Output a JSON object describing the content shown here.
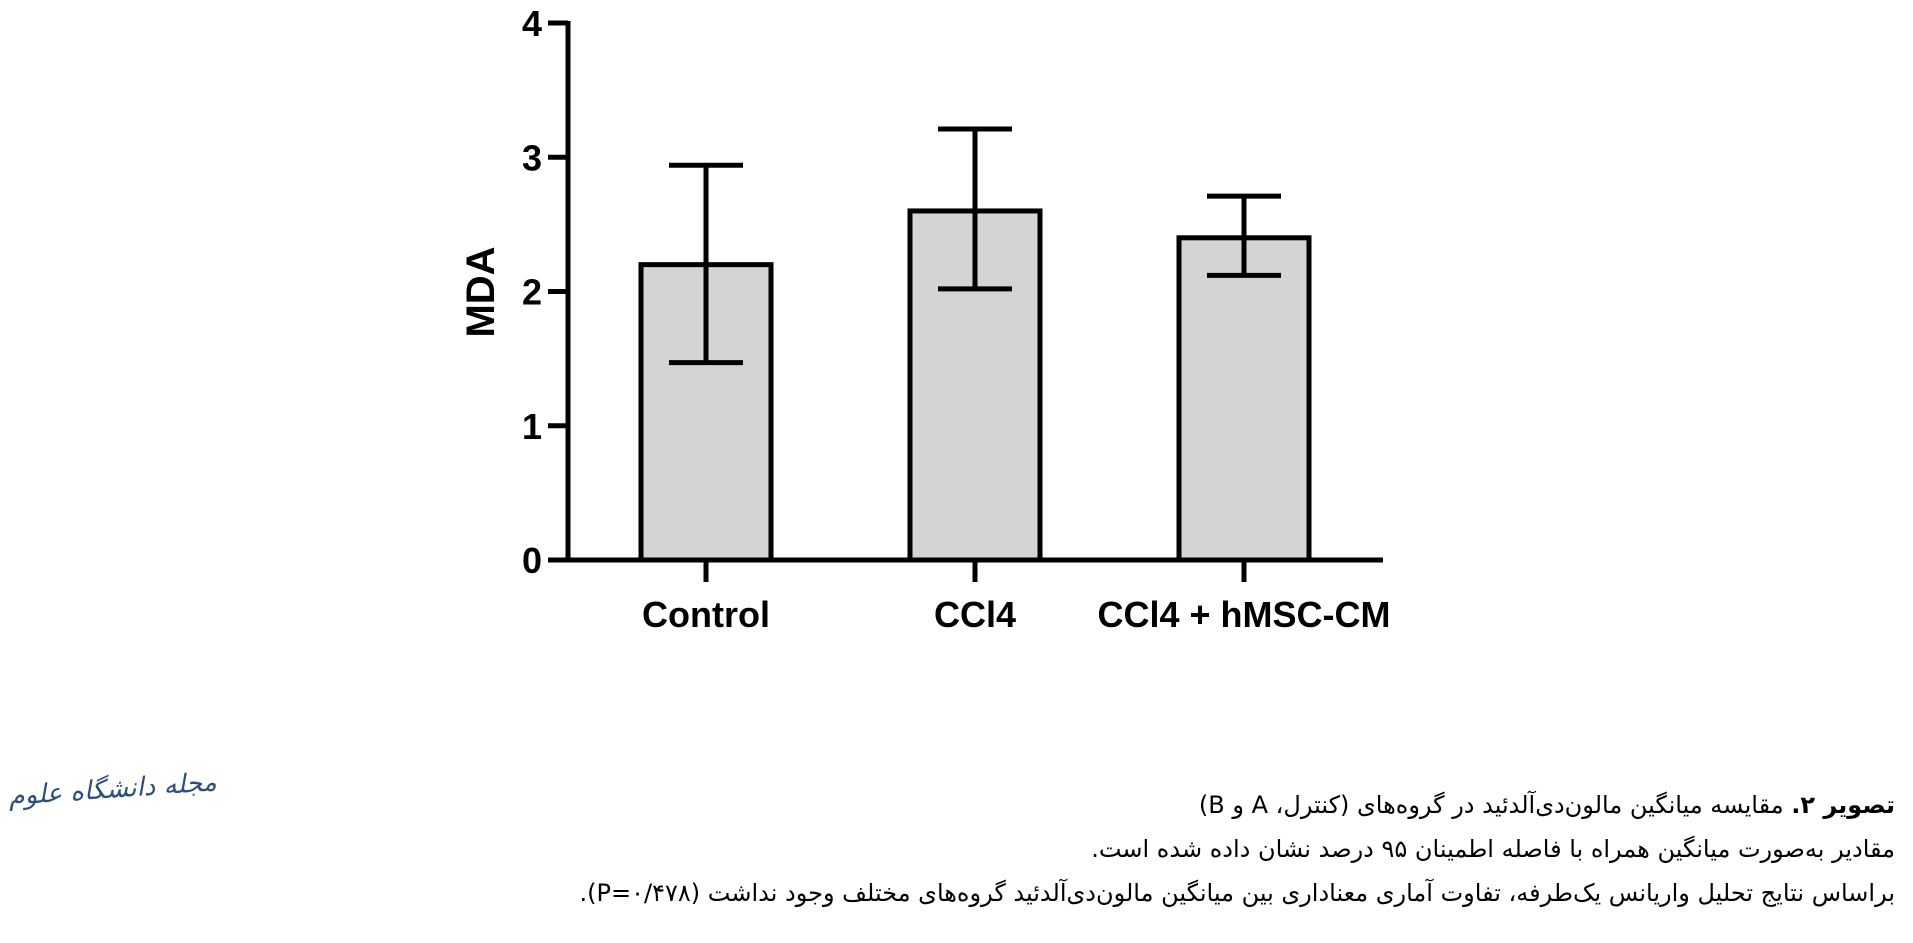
{
  "chart_data": {
    "type": "bar",
    "categories": [
      "Control",
      "CCl4",
      "CCl4 + hMSC-CM"
    ],
    "values": [
      2.2,
      2.6,
      2.4
    ],
    "error_low": [
      1.47,
      2.02,
      2.12
    ],
    "error_high": [
      2.94,
      3.21,
      2.71
    ],
    "ylabel": "MDA",
    "xlabel": "",
    "ylim": [
      0,
      4
    ],
    "yticks": [
      "0",
      "1",
      "2",
      "3",
      "4"
    ],
    "grid": false,
    "bar_color": "#d4d4d4",
    "edge_color": "#000000"
  },
  "caption": {
    "lead": "تصویر ۲.",
    "line1": " مقایسه میانگین مالون‌دی‌آلدئید در گروه‌های (کنترل، A و B)",
    "line2": "مقادیر به‌صورت میانگین همراه با فاصله اطمینان ۹۵ درصد نشان داده شده است.",
    "line3": "براساس نتایج تحلیل واریانس یک‌طرفه، تفاوت آماری معناداری بین میانگین مالون‌دی‌آلدئید گروه‌های مختلف وجود نداشت (P=۰/۴۷۸)."
  },
  "logo": {
    "text": "مجله دانشگاه علوم پزشکی گیلان"
  }
}
